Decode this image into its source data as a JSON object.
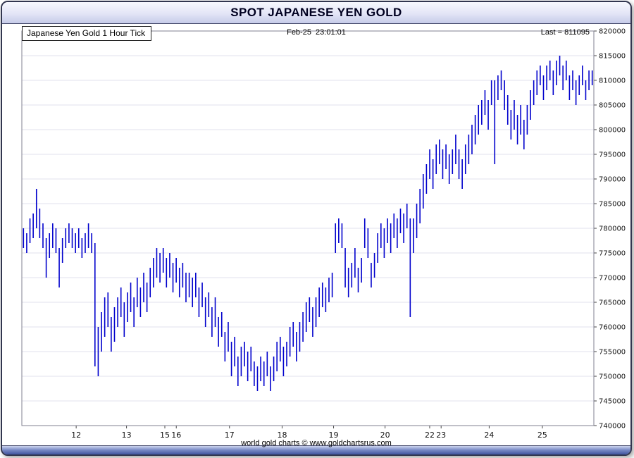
{
  "window": {
    "title": "SPOT JAPANESE YEN GOLD"
  },
  "header": {
    "series_label": "Japanese Yen Gold 1 Hour Tick",
    "timestamp": "Feb-25  23:01:01",
    "last_label": "Last = 811095"
  },
  "footer": {
    "credit": "world gold charts © www.goldchartsrus.com"
  },
  "colors": {
    "bar": "#0000cc",
    "grid": "#e2e2ec",
    "frame": "#808090",
    "axis_text": "#111111",
    "titlebar_text": "#000020",
    "window_border": "#32364f"
  },
  "chart_data": {
    "type": "bar",
    "subtype": "ohlc-hilo-tick",
    "title": "Japanese Yen Gold 1 Hour Tick",
    "timestamp": "Feb-25 23:01:01",
    "last": 811095,
    "xlabel": "",
    "ylabel": "",
    "ylim": [
      740000,
      820000
    ],
    "y_tick_step": 5000,
    "y_ticks": [
      740000,
      745000,
      750000,
      755000,
      760000,
      765000,
      770000,
      775000,
      780000,
      785000,
      790000,
      795000,
      800000,
      805000,
      810000,
      815000,
      820000
    ],
    "x_tick_labels": [
      {
        "label": "12",
        "f": 0.095
      },
      {
        "label": "13",
        "f": 0.183
      },
      {
        "label": "15",
        "f": 0.25
      },
      {
        "label": "16",
        "f": 0.27
      },
      {
        "label": "17",
        "f": 0.363
      },
      {
        "label": "18",
        "f": 0.455
      },
      {
        "label": "19",
        "f": 0.545
      },
      {
        "label": "20",
        "f": 0.635
      },
      {
        "label": "22",
        "f": 0.713
      },
      {
        "label": "23",
        "f": 0.733
      },
      {
        "label": "24",
        "f": 0.817
      },
      {
        "label": "25",
        "f": 0.91
      }
    ],
    "grid": true,
    "legend": "none",
    "bar_color": "#0000cc",
    "bars_low_high": [
      [
        776000,
        780000
      ],
      [
        775000,
        779000
      ],
      [
        777000,
        782000
      ],
      [
        778000,
        783000
      ],
      [
        780000,
        788000
      ],
      [
        778000,
        784000
      ],
      [
        776000,
        781000
      ],
      [
        770000,
        778000
      ],
      [
        774000,
        779000
      ],
      [
        776000,
        781000
      ],
      [
        775000,
        780000
      ],
      [
        768000,
        776000
      ],
      [
        773000,
        778000
      ],
      [
        776000,
        780000
      ],
      [
        777000,
        781000
      ],
      [
        776000,
        780000
      ],
      [
        775000,
        779000
      ],
      [
        776000,
        780000
      ],
      [
        774000,
        778000
      ],
      [
        775000,
        779000
      ],
      [
        776000,
        781000
      ],
      [
        775000,
        779000
      ],
      [
        752000,
        777000
      ],
      [
        750000,
        760000
      ],
      [
        755000,
        763000
      ],
      [
        758000,
        766000
      ],
      [
        760000,
        767000
      ],
      [
        755000,
        762000
      ],
      [
        757000,
        764000
      ],
      [
        760000,
        766000
      ],
      [
        762000,
        768000
      ],
      [
        758000,
        765000
      ],
      [
        761000,
        767000
      ],
      [
        763000,
        769000
      ],
      [
        760000,
        766000
      ],
      [
        764000,
        770000
      ],
      [
        762000,
        768000
      ],
      [
        765000,
        771000
      ],
      [
        763000,
        769000
      ],
      [
        766000,
        772000
      ],
      [
        768000,
        774000
      ],
      [
        770000,
        776000
      ],
      [
        769000,
        775000
      ],
      [
        771000,
        776000
      ],
      [
        768000,
        774000
      ],
      [
        770000,
        775000
      ],
      [
        767000,
        773000
      ],
      [
        769000,
        774000
      ],
      [
        766000,
        772000
      ],
      [
        768000,
        773000
      ],
      [
        765000,
        771000
      ],
      [
        766000,
        771000
      ],
      [
        764000,
        770000
      ],
      [
        766000,
        771000
      ],
      [
        762000,
        768000
      ],
      [
        764000,
        769000
      ],
      [
        760000,
        766000
      ],
      [
        762000,
        767000
      ],
      [
        758000,
        764000
      ],
      [
        760000,
        766000
      ],
      [
        756000,
        762000
      ],
      [
        758000,
        763000
      ],
      [
        753000,
        759000
      ],
      [
        755000,
        761000
      ],
      [
        750000,
        757000
      ],
      [
        752000,
        758000
      ],
      [
        748000,
        754000
      ],
      [
        750000,
        756000
      ],
      [
        752000,
        757000
      ],
      [
        749000,
        755000
      ],
      [
        751000,
        756000
      ],
      [
        748000,
        753000
      ],
      [
        747000,
        752000
      ],
      [
        749000,
        754000
      ],
      [
        748000,
        753000
      ],
      [
        750000,
        755000
      ],
      [
        747000,
        752000
      ],
      [
        749000,
        754000
      ],
      [
        751000,
        757000
      ],
      [
        753000,
        758000
      ],
      [
        750000,
        756000
      ],
      [
        752000,
        757000
      ],
      [
        754000,
        760000
      ],
      [
        756000,
        761000
      ],
      [
        753000,
        759000
      ],
      [
        755000,
        761000
      ],
      [
        757000,
        763000
      ],
      [
        759000,
        765000
      ],
      [
        761000,
        766000
      ],
      [
        758000,
        764000
      ],
      [
        760000,
        766000
      ],
      [
        762000,
        768000
      ],
      [
        764000,
        769000
      ],
      [
        763000,
        768000
      ],
      [
        765000,
        770000
      ],
      [
        766000,
        771000
      ],
      [
        775000,
        781000
      ],
      [
        777000,
        782000
      ],
      [
        776000,
        781000
      ],
      [
        768000,
        776000
      ],
      [
        766000,
        772000
      ],
      [
        768000,
        773000
      ],
      [
        770000,
        776000
      ],
      [
        767000,
        772000
      ],
      [
        769000,
        774000
      ],
      [
        776000,
        782000
      ],
      [
        774000,
        780000
      ],
      [
        768000,
        773000
      ],
      [
        770000,
        775000
      ],
      [
        773000,
        779000
      ],
      [
        776000,
        781000
      ],
      [
        774000,
        780000
      ],
      [
        777000,
        782000
      ],
      [
        775000,
        781000
      ],
      [
        778000,
        783000
      ],
      [
        776000,
        782000
      ],
      [
        779000,
        784000
      ],
      [
        777000,
        783000
      ],
      [
        780000,
        785000
      ],
      [
        762000,
        782000
      ],
      [
        775000,
        782000
      ],
      [
        778000,
        785000
      ],
      [
        781000,
        788000
      ],
      [
        784000,
        791000
      ],
      [
        787000,
        793000
      ],
      [
        790000,
        796000
      ],
      [
        788000,
        794000
      ],
      [
        791000,
        797000
      ],
      [
        793000,
        798000
      ],
      [
        790000,
        796000
      ],
      [
        792000,
        797000
      ],
      [
        789000,
        795000
      ],
      [
        791000,
        796000
      ],
      [
        793000,
        799000
      ],
      [
        790000,
        796000
      ],
      [
        788000,
        794000
      ],
      [
        791000,
        797000
      ],
      [
        793000,
        799000
      ],
      [
        795000,
        801000
      ],
      [
        797000,
        803000
      ],
      [
        799000,
        805000
      ],
      [
        801000,
        806000
      ],
      [
        803000,
        808000
      ],
      [
        800000,
        806000
      ],
      [
        805000,
        810000
      ],
      [
        793000,
        810000
      ],
      [
        806000,
        811000
      ],
      [
        808000,
        812000
      ],
      [
        804000,
        810000
      ],
      [
        801000,
        807000
      ],
      [
        798000,
        804000
      ],
      [
        800000,
        806000
      ],
      [
        797000,
        803000
      ],
      [
        799000,
        805000
      ],
      [
        796000,
        802000
      ],
      [
        799000,
        805000
      ],
      [
        802000,
        808000
      ],
      [
        805000,
        810000
      ],
      [
        807000,
        812000
      ],
      [
        809000,
        813000
      ],
      [
        806000,
        811000
      ],
      [
        808000,
        813000
      ],
      [
        810000,
        814000
      ],
      [
        807000,
        812000
      ],
      [
        809000,
        814000
      ],
      [
        811000,
        815000
      ],
      [
        808000,
        813000
      ],
      [
        810000,
        814000
      ],
      [
        806000,
        811000
      ],
      [
        808000,
        812000
      ],
      [
        805000,
        810000
      ],
      [
        807000,
        811000
      ],
      [
        809000,
        813000
      ],
      [
        806000,
        810000
      ],
      [
        808000,
        812000
      ],
      [
        809000,
        812000
      ]
    ]
  }
}
